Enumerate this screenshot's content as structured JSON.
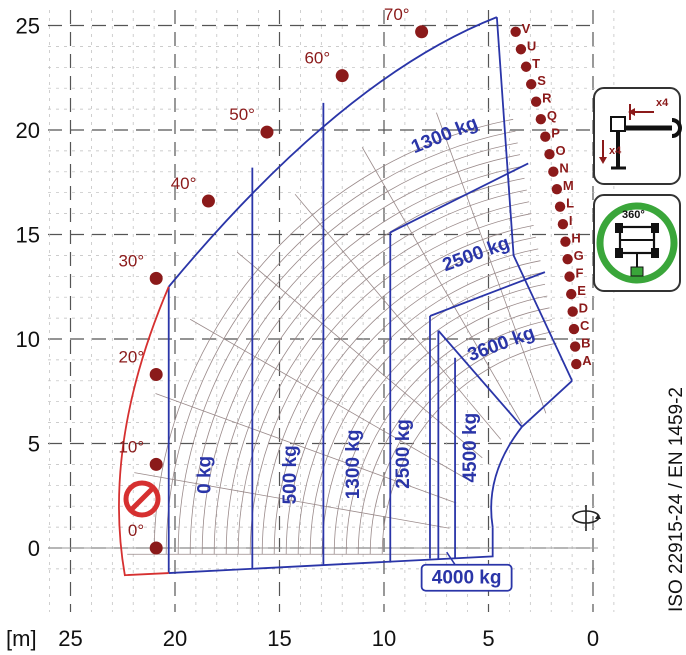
{
  "axes": {
    "x_unit": "[m]",
    "x_ticks": [
      "25",
      "20",
      "15",
      "10",
      "5",
      "0"
    ],
    "y_ticks": [
      "25",
      "20",
      "15",
      "10",
      "5",
      "0"
    ]
  },
  "angles": [
    "0°",
    "10°",
    "20°",
    "30°",
    "40°",
    "50°",
    "60°",
    "70°"
  ],
  "extension_letters": [
    "A",
    "B",
    "C",
    "D",
    "E",
    "F",
    "G",
    "H",
    "I",
    "L",
    "M",
    "N",
    "O",
    "P",
    "Q",
    "R",
    "S",
    "T",
    "U",
    "V"
  ],
  "load_zones": {
    "vertical": [
      "0 kg",
      "500 kg",
      "1300 kg",
      "2500 kg",
      "4500 kg"
    ],
    "horizontal": [
      "1300 kg",
      "2500 kg",
      "3600 kg"
    ],
    "boxed": "4000 kg"
  },
  "standard_text": "ISO 22915-24  / EN 1459-2",
  "stabilizer_hint": "x4",
  "platform_hint": "360°",
  "colors": {
    "envelope": "#2a35a8",
    "limit": "#d63030",
    "marker": "#8b1a1a",
    "grid": "#9a8a8a",
    "gauge_ring": "#3aa63a",
    "prohibit": "#d63030"
  }
}
